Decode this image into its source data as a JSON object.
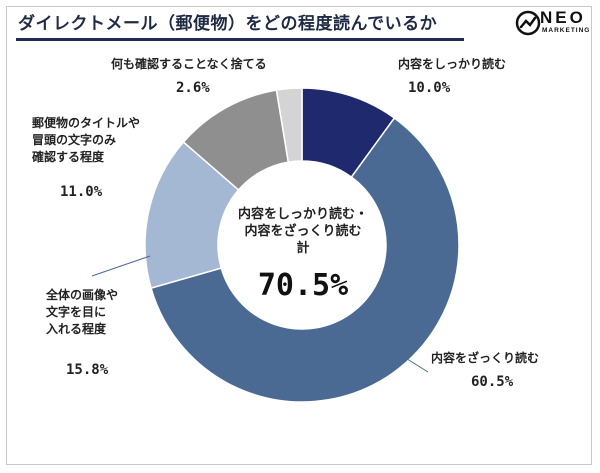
{
  "header": {
    "title": "ダイレクトメール（郵便物）をどの程度読んでいるか",
    "logo_text": "NEO",
    "logo_sub": "MARKETING"
  },
  "chart_data": {
    "type": "pie",
    "donut": true,
    "title": "ダイレクトメール（郵便物）をどの程度読んでいるか",
    "unit": "%",
    "slices": [
      {
        "label": "内容をしっかり読む",
        "value": 10.0,
        "value_label": "10.0%",
        "color": "#1f2a6e"
      },
      {
        "label": "内容をざっくり読む",
        "value": 60.5,
        "value_label": "60.5%",
        "color": "#4a6a93"
      },
      {
        "label": "全体の画像や文字を目に入れる程度",
        "value": 15.8,
        "value_label": "15.8%",
        "color": "#a4b8d4"
      },
      {
        "label": "郵便物のタイトルや冒頭の文字のみ確認する程度",
        "value": 11.0,
        "value_label": "11.0%",
        "color": "#8f8f8f"
      },
      {
        "label": "何も確認することなく捨てる",
        "value": 2.6,
        "value_label": "2.6%",
        "color": "#d4d4d4"
      }
    ],
    "center": {
      "label": "内容をしっかり読む・内容をざっくり読む計",
      "value_label": "70.5%"
    }
  },
  "labels": {
    "slice0": {
      "lines": [
        "内容をしっかり読む"
      ],
      "pct": "10.0%"
    },
    "slice1": {
      "lines": [
        "内容をざっくり読む"
      ],
      "pct": "60.5%"
    },
    "slice2": {
      "lines": [
        "全体の画像や",
        "文字を目に",
        "入れる程度"
      ],
      "pct": "15.8%"
    },
    "slice3": {
      "lines": [
        "郵便物のタイトルや",
        "冒頭の文字のみ",
        "確認する程度"
      ],
      "pct": "11.0%"
    },
    "slice4": {
      "lines": [
        "何も確認することなく捨てる"
      ],
      "pct": "2.6%"
    },
    "center": {
      "lines": [
        "内容をしっかり読む・",
        "内容をざっくり読む",
        "計"
      ],
      "value": "70.5%"
    }
  }
}
